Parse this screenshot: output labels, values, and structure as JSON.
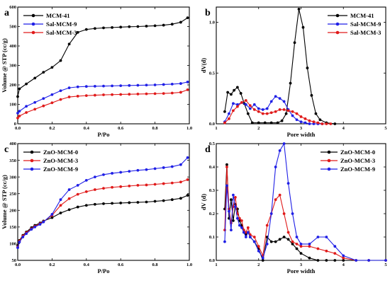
{
  "figure": {
    "black": "#000000",
    "blue": "#1f1fe6",
    "red": "#e01a1a"
  },
  "chart_data": [
    {
      "type": "line",
      "panel": "a",
      "xlabel": "P/Po",
      "ylabel": "Volume @ STP (cc/g)",
      "xlim": [
        0,
        1.0
      ],
      "ylim": [
        0,
        600
      ],
      "xticks": [
        0.0,
        0.2,
        0.4,
        0.6,
        0.8,
        1.0
      ],
      "yticks": [
        0,
        100,
        200,
        300,
        400,
        500,
        600
      ],
      "xtick_labels": [
        "0.0",
        "0.2",
        "0.4",
        "0.6",
        "0.8",
        "1.0"
      ],
      "ytick_labels": [
        "0",
        "100",
        "200",
        "300",
        "400",
        "500",
        "600"
      ],
      "legend_position": "top-left",
      "series": [
        {
          "name": "MCM-41",
          "color": "#000000",
          "marker": "circle",
          "x": [
            0.0,
            0.01,
            0.05,
            0.1,
            0.15,
            0.2,
            0.25,
            0.3,
            0.35,
            0.4,
            0.45,
            0.5,
            0.55,
            0.6,
            0.65,
            0.7,
            0.75,
            0.8,
            0.85,
            0.9,
            0.95,
            0.99
          ],
          "y": [
            140,
            180,
            205,
            235,
            265,
            290,
            325,
            410,
            470,
            485,
            490,
            493,
            495,
            497,
            499,
            500,
            502,
            504,
            507,
            512,
            522,
            545
          ]
        },
        {
          "name": "Sal-MCM-9",
          "color": "#1f1fe6",
          "marker": "circle",
          "x": [
            0.0,
            0.01,
            0.05,
            0.1,
            0.15,
            0.2,
            0.25,
            0.3,
            0.35,
            0.4,
            0.45,
            0.5,
            0.55,
            0.6,
            0.65,
            0.7,
            0.75,
            0.8,
            0.85,
            0.9,
            0.95,
            0.99
          ],
          "y": [
            55,
            65,
            90,
            110,
            130,
            150,
            170,
            185,
            190,
            192,
            193,
            194,
            195,
            196,
            197,
            198,
            199,
            200,
            202,
            204,
            207,
            215
          ]
        },
        {
          "name": "Sal-MCM-3",
          "color": "#e01a1a",
          "marker": "circle",
          "x": [
            0.0,
            0.01,
            0.05,
            0.1,
            0.15,
            0.2,
            0.25,
            0.3,
            0.35,
            0.4,
            0.45,
            0.5,
            0.55,
            0.6,
            0.65,
            0.7,
            0.75,
            0.8,
            0.85,
            0.9,
            0.95,
            0.99
          ],
          "y": [
            30,
            40,
            58,
            75,
            92,
            108,
            125,
            138,
            142,
            145,
            147,
            149,
            150,
            151,
            152,
            153,
            154,
            155,
            156,
            158,
            162,
            175
          ]
        }
      ]
    },
    {
      "type": "line",
      "panel": "b",
      "xlabel": "Pore width",
      "ylabel": "dV(d)",
      "xlim": [
        1,
        5
      ],
      "ylim": [
        0,
        1.15
      ],
      "xticks": [
        1,
        2,
        3,
        4,
        5
      ],
      "yticks": [
        0.0,
        0.5,
        1.0
      ],
      "xtick_labels": [
        "1",
        "2",
        "3",
        "4",
        "5"
      ],
      "ytick_labels": [
        "0.0",
        "0.5",
        "1.0"
      ],
      "legend_position": "top-right",
      "series": [
        {
          "name": "MCM-41",
          "color": "#000000",
          "marker": "circle",
          "x": [
            1.2,
            1.27,
            1.35,
            1.42,
            1.5,
            1.58,
            1.66,
            1.75,
            1.85,
            2.0,
            2.15,
            2.3,
            2.45,
            2.55,
            2.65,
            2.75,
            2.85,
            2.95,
            3.05,
            3.15,
            3.25,
            3.35,
            3.45,
            3.6,
            3.8
          ],
          "y": [
            0.12,
            0.31,
            0.29,
            0.33,
            0.36,
            0.3,
            0.2,
            0.1,
            0.01,
            0.01,
            0.01,
            0.01,
            0.01,
            0.03,
            0.1,
            0.4,
            0.8,
            1.13,
            0.95,
            0.55,
            0.28,
            0.1,
            0.04,
            0.01,
            0.0
          ]
        },
        {
          "name": "Sal-MCM-9",
          "color": "#1f1fe6",
          "marker": "circle",
          "x": [
            1.2,
            1.3,
            1.4,
            1.5,
            1.6,
            1.7,
            1.8,
            1.9,
            2.0,
            2.1,
            2.2,
            2.3,
            2.4,
            2.5,
            2.6,
            2.7,
            2.8,
            2.9,
            3.0,
            3.1,
            3.2,
            3.3,
            3.4,
            3.5
          ],
          "y": [
            0.02,
            0.1,
            0.2,
            0.19,
            0.21,
            0.19,
            0.15,
            0.19,
            0.15,
            0.14,
            0.15,
            0.22,
            0.27,
            0.25,
            0.22,
            0.14,
            0.08,
            0.04,
            0.02,
            0.01,
            0.0,
            0.0,
            0.0,
            0.0
          ]
        },
        {
          "name": "Sal-MCM-3",
          "color": "#e01a1a",
          "marker": "circle",
          "x": [
            1.2,
            1.3,
            1.4,
            1.5,
            1.6,
            1.7,
            1.8,
            1.9,
            2.0,
            2.1,
            2.2,
            2.3,
            2.4,
            2.5,
            2.6,
            2.7,
            2.8,
            2.9,
            3.0,
            3.1,
            3.2,
            3.3,
            3.4,
            3.5,
            3.6,
            3.7
          ],
          "y": [
            0.01,
            0.05,
            0.13,
            0.17,
            0.21,
            0.23,
            0.18,
            0.14,
            0.12,
            0.1,
            0.1,
            0.11,
            0.12,
            0.14,
            0.14,
            0.13,
            0.12,
            0.1,
            0.07,
            0.05,
            0.03,
            0.02,
            0.01,
            0.0,
            0.0,
            0.0
          ]
        }
      ]
    },
    {
      "type": "line",
      "panel": "c",
      "xlabel": "P/Po",
      "ylabel": "Volume @ STP (cc/g)",
      "xlim": [
        0,
        1.0
      ],
      "ylim": [
        50,
        400
      ],
      "xticks": [
        0.0,
        0.2,
        0.4,
        0.6,
        0.8,
        1.0
      ],
      "yticks": [
        50,
        100,
        150,
        200,
        250,
        300,
        350,
        400
      ],
      "xtick_labels": [
        "0.0",
        "0.2",
        "0.4",
        "0.6",
        "0.8",
        "1.0"
      ],
      "ytick_labels": [
        "50",
        "100",
        "150",
        "200",
        "250",
        "300",
        "350",
        "400"
      ],
      "legend_position": "top-left",
      "series": [
        {
          "name": "ZnO-MCM-0",
          "color": "#000000",
          "marker": "circle",
          "x": [
            0.0,
            0.01,
            0.03,
            0.05,
            0.08,
            0.1,
            0.13,
            0.15,
            0.2,
            0.25,
            0.3,
            0.35,
            0.4,
            0.45,
            0.5,
            0.55,
            0.6,
            0.65,
            0.7,
            0.75,
            0.8,
            0.85,
            0.9,
            0.95,
            0.99
          ],
          "y": [
            95,
            110,
            125,
            135,
            148,
            155,
            162,
            168,
            178,
            192,
            202,
            210,
            215,
            218,
            220,
            221,
            222,
            223,
            224,
            225,
            227,
            229,
            232,
            236,
            245
          ]
        },
        {
          "name": "ZnO-MCM-3",
          "color": "#e01a1a",
          "marker": "circle",
          "x": [
            0.0,
            0.01,
            0.03,
            0.05,
            0.08,
            0.1,
            0.13,
            0.15,
            0.2,
            0.25,
            0.3,
            0.35,
            0.4,
            0.45,
            0.5,
            0.55,
            0.6,
            0.65,
            0.7,
            0.75,
            0.8,
            0.85,
            0.9,
            0.95,
            0.99
          ],
          "y": [
            90,
            108,
            123,
            133,
            145,
            152,
            160,
            166,
            185,
            215,
            235,
            248,
            256,
            262,
            266,
            269,
            271,
            273,
            275,
            276,
            278,
            280,
            282,
            285,
            292
          ]
        },
        {
          "name": "ZnO-MCM-9",
          "color": "#1f1fe6",
          "marker": "circle",
          "x": [
            0.0,
            0.01,
            0.03,
            0.05,
            0.08,
            0.1,
            0.13,
            0.15,
            0.2,
            0.25,
            0.3,
            0.35,
            0.4,
            0.45,
            0.5,
            0.55,
            0.6,
            0.65,
            0.7,
            0.75,
            0.8,
            0.85,
            0.9,
            0.95,
            0.99
          ],
          "y": [
            88,
            105,
            120,
            130,
            143,
            150,
            158,
            165,
            188,
            232,
            262,
            275,
            290,
            300,
            307,
            311,
            314,
            317,
            320,
            322,
            325,
            328,
            331,
            337,
            358
          ]
        }
      ]
    },
    {
      "type": "line",
      "panel": "d",
      "xlabel": "Pore width",
      "ylabel": "dV (d)",
      "xlim": [
        1,
        5
      ],
      "ylim": [
        0,
        0.5
      ],
      "xticks": [
        1,
        2,
        3,
        4,
        5
      ],
      "yticks": [
        0.0,
        0.1,
        0.2,
        0.3,
        0.4,
        0.5
      ],
      "xtick_labels": [
        "1",
        "2",
        "3",
        "4",
        "5"
      ],
      "ytick_labels": [
        "0.0",
        "0.1",
        "0.2",
        "0.3",
        "0.4",
        "0.5"
      ],
      "legend_position": "top-right",
      "series": [
        {
          "name": "ZnO-MCM-0",
          "color": "#000000",
          "marker": "circle",
          "x": [
            1.2,
            1.25,
            1.3,
            1.35,
            1.4,
            1.45,
            1.5,
            1.55,
            1.6,
            1.65,
            1.7,
            1.75,
            1.8,
            1.9,
            2.0,
            2.1,
            2.2,
            2.3,
            2.4,
            2.5,
            2.6,
            2.7,
            2.8,
            2.9,
            3.0,
            3.2,
            3.4,
            3.6,
            3.8,
            4.0
          ],
          "y": [
            0.22,
            0.41,
            0.18,
            0.26,
            0.17,
            0.24,
            0.22,
            0.17,
            0.15,
            0.12,
            0.11,
            0.12,
            0.1,
            0.08,
            0.05,
            0.0,
            0.1,
            0.08,
            0.08,
            0.09,
            0.1,
            0.09,
            0.07,
            0.05,
            0.03,
            0.01,
            0.0,
            0.0,
            0.0,
            0.0
          ]
        },
        {
          "name": "ZnO-MCM-3",
          "color": "#e01a1a",
          "marker": "circle",
          "x": [
            1.2,
            1.25,
            1.3,
            1.35,
            1.4,
            1.45,
            1.5,
            1.55,
            1.6,
            1.65,
            1.7,
            1.75,
            1.8,
            1.9,
            2.0,
            2.1,
            2.2,
            2.3,
            2.4,
            2.5,
            2.6,
            2.7,
            2.8,
            2.9,
            3.0,
            3.2,
            3.4,
            3.6,
            3.8,
            4.0,
            4.3,
            4.6,
            5.0
          ],
          "y": [
            0.13,
            0.4,
            0.22,
            0.16,
            0.23,
            0.27,
            0.2,
            0.18,
            0.17,
            0.13,
            0.12,
            0.14,
            0.11,
            0.1,
            0.06,
            0.02,
            0.15,
            0.2,
            0.26,
            0.28,
            0.2,
            0.12,
            0.08,
            0.07,
            0.06,
            0.06,
            0.05,
            0.04,
            0.03,
            0.01,
            0.0,
            0.0,
            0.0
          ]
        },
        {
          "name": "ZnO-MCM-9",
          "color": "#1f1fe6",
          "marker": "circle",
          "x": [
            1.2,
            1.25,
            1.3,
            1.35,
            1.4,
            1.45,
            1.5,
            1.55,
            1.6,
            1.65,
            1.7,
            1.75,
            1.8,
            1.9,
            2.0,
            2.1,
            2.2,
            2.3,
            2.4,
            2.5,
            2.6,
            2.7,
            2.8,
            2.9,
            3.0,
            3.2,
            3.4,
            3.6,
            3.8,
            4.0,
            4.3,
            4.6,
            5.0
          ],
          "y": [
            0.08,
            0.32,
            0.21,
            0.13,
            0.28,
            0.23,
            0.18,
            0.15,
            0.14,
            0.12,
            0.1,
            0.12,
            0.1,
            0.08,
            0.04,
            0.01,
            0.07,
            0.2,
            0.4,
            0.47,
            0.5,
            0.33,
            0.2,
            0.1,
            0.07,
            0.07,
            0.1,
            0.1,
            0.06,
            0.02,
            0.0,
            0.0,
            0.0
          ]
        }
      ]
    }
  ]
}
